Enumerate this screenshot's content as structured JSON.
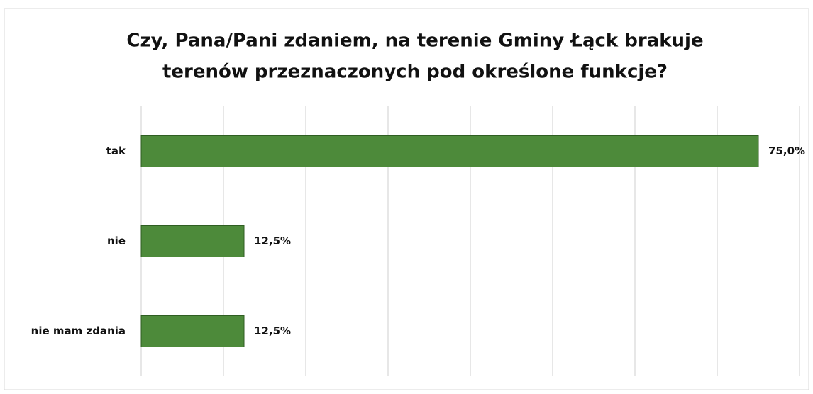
{
  "chart_data": {
    "type": "bar",
    "orientation": "horizontal",
    "title": [
      "Czy, Pana/Pani zdaniem, na terenie Gminy Łąck brakuje",
      "terenów przeznaczonych pod określone funkcje?"
    ],
    "categories": [
      "tak",
      "nie",
      "nie mam zdania"
    ],
    "values": [
      75,
      12.5,
      12.5
    ],
    "value_labels": [
      "75,0%",
      "12,5%",
      "12,5%"
    ],
    "color": "#4d8a3a",
    "xlim": [
      0,
      80
    ],
    "xticks": [
      0,
      10,
      20,
      30,
      40,
      50,
      60,
      70,
      80
    ],
    "grid": true
  }
}
